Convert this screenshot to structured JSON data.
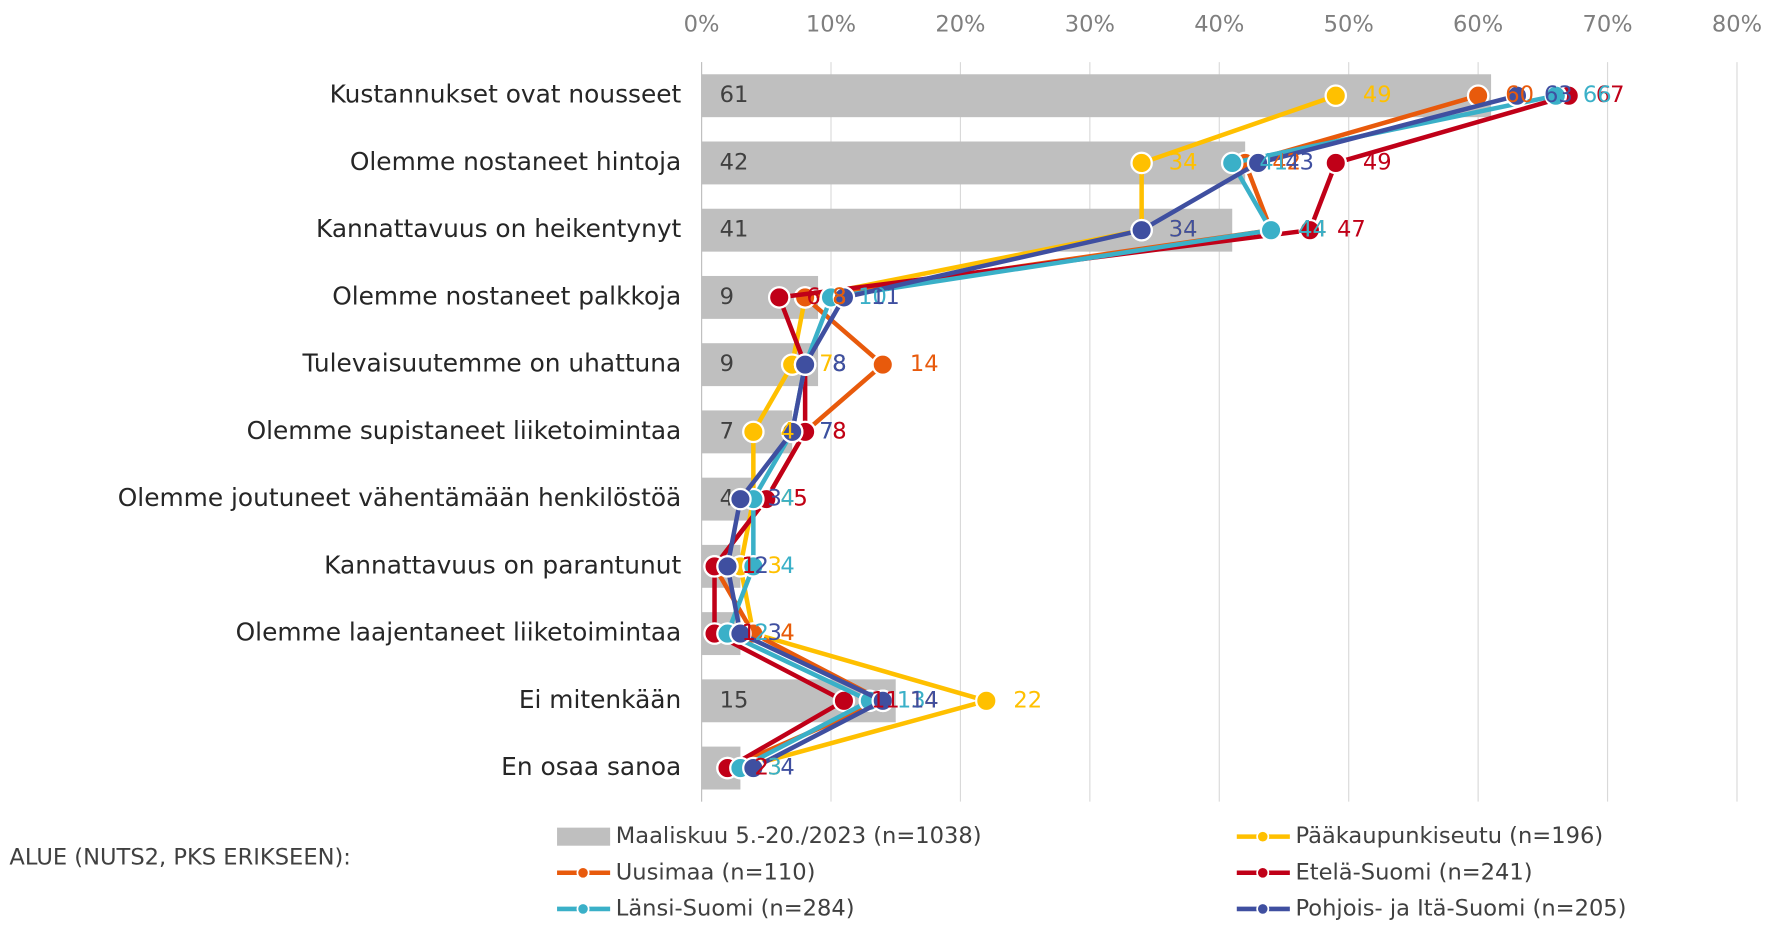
{
  "chart_data": {
    "type": "bar_line",
    "footer_label": "ALUE (NUTS2, PKS ERIKSEEN):",
    "categories": [
      "Kustannukset ovat nousseet",
      "Olemme nostaneet hintoja",
      "Kannattavuus on heikentynyt",
      "Olemme nostaneet palkkoja",
      "Tulevaisuutemme on uhattuna",
      "Olemme supistaneet liiketoimintaa",
      "Olemme joutuneet vähentämään henkilöstöä",
      "Kannattavuus on parantunut",
      "Olemme laajentaneet liiketoimintaa",
      "Ei mitenkään",
      "En osaa sanoa"
    ],
    "xlim": [
      0,
      80
    ],
    "xticks": [
      {
        "value": 0,
        "label": "0%"
      },
      {
        "value": 10,
        "label": "10%"
      },
      {
        "value": 20,
        "label": "20%"
      },
      {
        "value": 30,
        "label": "30%"
      },
      {
        "value": 40,
        "label": "40%"
      },
      {
        "value": 50,
        "label": "50%"
      },
      {
        "value": 60,
        "label": "60%"
      },
      {
        "value": 70,
        "label": "70%"
      },
      {
        "value": 80,
        "label": "80%"
      }
    ],
    "grid": true,
    "series": [
      {
        "name": "Maaliskuu 5.-20./2023 (n=1038)",
        "kind": "bar",
        "color": "#bfbfbf",
        "values": [
          61,
          42,
          41,
          9,
          9,
          7,
          4,
          3,
          3,
          15,
          3
        ]
      },
      {
        "name": "Pääkaupunkiseutu (n=196)",
        "kind": "line",
        "color": "#ffc000",
        "values": [
          49,
          34,
          34,
          8,
          7,
          4,
          4,
          3,
          4,
          22,
          3
        ]
      },
      {
        "name": "Uusimaa (n=110)",
        "kind": "line",
        "color": "#e85a0c",
        "values": [
          60,
          42,
          44,
          8,
          14,
          8,
          5,
          1,
          4,
          14,
          2
        ]
      },
      {
        "name": "Etelä-Suomi (n=241)",
        "kind": "line",
        "color": "#c00018",
        "values": [
          67,
          49,
          47,
          6,
          8,
          8,
          5,
          1,
          1,
          11,
          2
        ]
      },
      {
        "name": "Länsi-Suomi (n=284)",
        "kind": "line",
        "color": "#3ab0c8",
        "values": [
          66,
          41,
          44,
          10,
          8,
          7,
          4,
          4,
          2,
          13,
          3
        ]
      },
      {
        "name": "Pohjois- ja Itä-Suomi (n=205)",
        "kind": "line",
        "color": "#3f4fa0",
        "values": [
          63,
          43,
          34,
          11,
          8,
          7,
          3,
          2,
          3,
          14,
          4
        ]
      }
    ]
  }
}
